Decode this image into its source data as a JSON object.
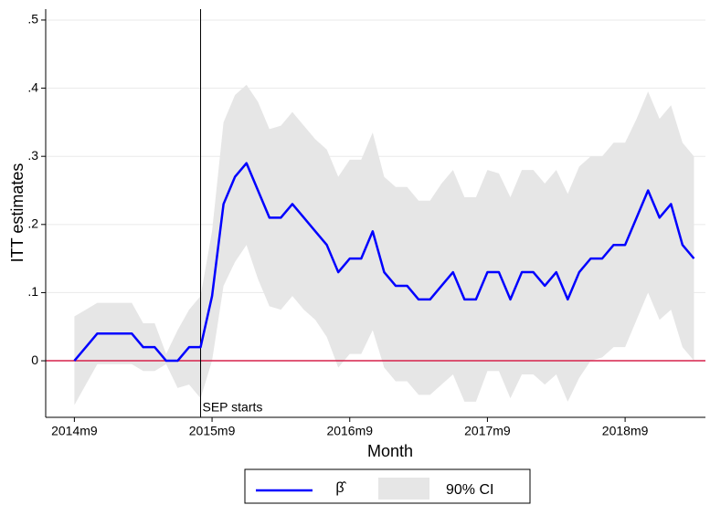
{
  "chart_data": {
    "type": "line",
    "xlabel": "Month",
    "ylabel": "ITT estimates",
    "x": [
      0,
      1,
      2,
      3,
      4,
      5,
      6,
      7,
      8,
      9,
      10,
      11,
      12,
      13,
      14,
      15,
      16,
      17,
      18,
      19,
      20,
      21,
      22,
      23,
      24,
      25,
      26,
      27,
      28,
      29,
      30,
      31,
      32,
      33,
      34,
      35,
      36,
      37,
      38,
      39,
      40,
      41,
      42,
      43,
      44,
      45,
      46,
      47,
      48,
      49,
      50,
      51,
      52,
      53,
      54
    ],
    "series": [
      {
        "name": "β̂",
        "color": "#0000ff",
        "values": [
          0,
          0.02,
          0.04,
          0.04,
          0.04,
          0.04,
          0.02,
          0.02,
          0,
          0,
          0.02,
          0.02,
          0.095,
          0.23,
          0.27,
          0.29,
          0.25,
          0.21,
          0.21,
          0.23,
          0.21,
          0.19,
          0.17,
          0.13,
          0.15,
          0.15,
          0.19,
          0.13,
          0.11,
          0.11,
          0.09,
          0.09,
          0.11,
          0.13,
          0.09,
          0.09,
          0.13,
          0.13,
          0.09,
          0.13,
          0.13,
          0.11,
          0.13,
          0.09,
          0.13,
          0.15,
          0.15,
          0.17,
          0.17,
          0.21,
          0.25,
          0.21,
          0.23,
          0.17,
          0.15
        ]
      }
    ],
    "ci": {
      "name": "90% CI",
      "color": "#e6e6e6",
      "upper": [
        0.065,
        0.075,
        0.085,
        0.085,
        0.085,
        0.085,
        0.055,
        0.055,
        0.01,
        0.045,
        0.075,
        0.095,
        0.19,
        0.35,
        0.39,
        0.405,
        0.38,
        0.34,
        0.345,
        0.365,
        0.345,
        0.325,
        0.31,
        0.27,
        0.295,
        0.295,
        0.335,
        0.27,
        0.255,
        0.255,
        0.235,
        0.235,
        0.26,
        0.28,
        0.24,
        0.24,
        0.28,
        0.275,
        0.24,
        0.28,
        0.28,
        0.26,
        0.28,
        0.245,
        0.285,
        0.3,
        0.3,
        0.32,
        0.32,
        0.355,
        0.395,
        0.355,
        0.375,
        0.32,
        0.3
      ],
      "lower": [
        -0.065,
        -0.035,
        -0.005,
        -0.005,
        -0.005,
        -0.005,
        -0.015,
        -0.015,
        -0.005,
        -0.04,
        -0.035,
        -0.055,
        0,
        0.11,
        0.145,
        0.17,
        0.12,
        0.08,
        0.075,
        0.095,
        0.075,
        0.06,
        0.035,
        -0.01,
        0.01,
        0.01,
        0.045,
        -0.01,
        -0.03,
        -0.03,
        -0.05,
        -0.05,
        -0.035,
        -0.02,
        -0.06,
        -0.06,
        -0.015,
        -0.015,
        -0.055,
        -0.02,
        -0.02,
        -0.035,
        -0.02,
        -0.06,
        -0.025,
        0,
        0.005,
        0.02,
        0.02,
        0.06,
        0.1,
        0.06,
        0.075,
        0.02,
        0
      ]
    },
    "annotation": {
      "text": "SEP starts",
      "x": 11
    },
    "reference_line": {
      "y": 0,
      "color": "#d6204a"
    },
    "xlim": [
      -2.5,
      55
    ],
    "ylim": [
      -0.083,
      0.516
    ],
    "xticks": [
      {
        "value": 0,
        "label": "2014m9"
      },
      {
        "value": 12,
        "label": "2015m9"
      },
      {
        "value": 24,
        "label": "2016m9"
      },
      {
        "value": 36,
        "label": "2017m9"
      },
      {
        "value": 48,
        "label": "2018m9"
      }
    ],
    "yticks": [
      0,
      {
        "value": 0.1,
        "label": ".1"
      },
      {
        "value": 0.2,
        "label": ".2"
      },
      {
        "value": 0.3,
        "label": ".3"
      },
      {
        "value": 0.4,
        "label": ".4"
      },
      {
        "value": 0.5,
        "label": ".5"
      }
    ],
    "grid": true,
    "legend": "bottom"
  }
}
